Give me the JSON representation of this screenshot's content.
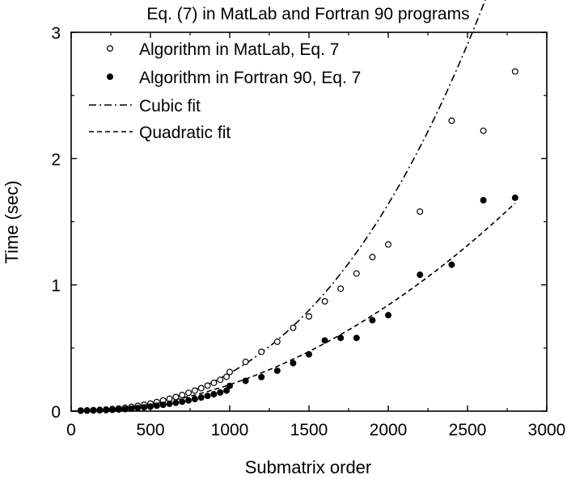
{
  "chart_data": {
    "type": "scatter",
    "title": "Eq. (7) in MatLab and Fortran 90 programs",
    "xlabel": "Submatrix order",
    "ylabel": "Time (sec)",
    "xlim": [
      0,
      3000
    ],
    "ylim": [
      0,
      3
    ],
    "xticks": [
      0,
      500,
      1000,
      1500,
      2000,
      2500,
      3000
    ],
    "yticks": [
      0,
      1,
      2,
      3
    ],
    "xtick_labels": [
      "0",
      "500",
      "1000",
      "1500",
      "2000",
      "2500",
      "3000"
    ],
    "ytick_labels": [
      "0",
      "1",
      "2",
      "3"
    ],
    "legend_position": "top-left",
    "series": [
      {
        "name": "Algorithm in MatLab, Eq. 7",
        "marker": "open-circle",
        "x": [
          60,
          100,
          140,
          180,
          220,
          260,
          300,
          340,
          380,
          420,
          460,
          500,
          540,
          580,
          620,
          660,
          700,
          740,
          780,
          820,
          860,
          900,
          940,
          980,
          1000,
          1100,
          1200,
          1300,
          1400,
          1500,
          1600,
          1700,
          1800,
          1900,
          2000,
          2200,
          2400,
          2600,
          2800
        ],
        "y": [
          0.005,
          0.006,
          0.008,
          0.01,
          0.013,
          0.017,
          0.021,
          0.027,
          0.034,
          0.042,
          0.05,
          0.06,
          0.072,
          0.085,
          0.098,
          0.112,
          0.128,
          0.145,
          0.163,
          0.182,
          0.202,
          0.224,
          0.248,
          0.272,
          0.31,
          0.39,
          0.47,
          0.55,
          0.66,
          0.75,
          0.87,
          0.97,
          1.09,
          1.22,
          1.32,
          1.58,
          2.3,
          2.22,
          2.69
        ]
      },
      {
        "name": "Algorithm in Fortran 90, Eq. 7",
        "marker": "filled-circle",
        "x": [
          60,
          100,
          140,
          180,
          220,
          260,
          300,
          340,
          380,
          420,
          460,
          500,
          540,
          580,
          620,
          660,
          700,
          740,
          780,
          820,
          860,
          900,
          940,
          980,
          1000,
          1100,
          1200,
          1300,
          1400,
          1500,
          1600,
          1700,
          1800,
          1900,
          2000,
          2200,
          2400,
          2600,
          2800
        ],
        "y": [
          0.003,
          0.004,
          0.005,
          0.006,
          0.008,
          0.01,
          0.013,
          0.016,
          0.02,
          0.025,
          0.03,
          0.036,
          0.043,
          0.05,
          0.058,
          0.066,
          0.075,
          0.085,
          0.096,
          0.108,
          0.121,
          0.134,
          0.148,
          0.163,
          0.2,
          0.24,
          0.27,
          0.32,
          0.38,
          0.45,
          0.56,
          0.58,
          0.58,
          0.72,
          0.76,
          1.08,
          1.16,
          1.67,
          1.69
        ]
      },
      {
        "name": "Cubic fit",
        "line_style": "dash-dot",
        "fit": "cubic",
        "coefficients": {
          "a": 1.1e-10,
          "b": 1.9e-07,
          "c": 0.0,
          "d": 0.0
        }
      },
      {
        "name": "Quadratic fit",
        "line_style": "dashed",
        "fit": "quadratic",
        "coefficients": {
          "a": 2.1e-07,
          "b": 0.0,
          "c": 0.0
        }
      }
    ]
  }
}
